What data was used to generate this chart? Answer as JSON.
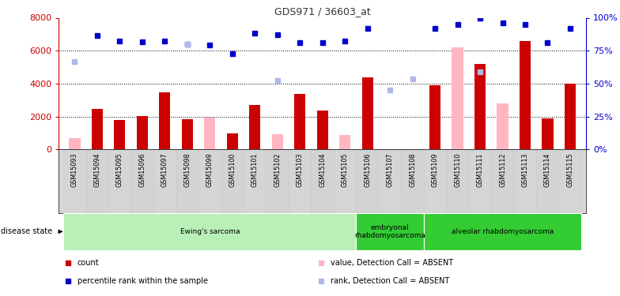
{
  "title": "GDS971 / 36603_at",
  "samples": [
    "GSM15093",
    "GSM15094",
    "GSM15095",
    "GSM15096",
    "GSM15097",
    "GSM15098",
    "GSM15099",
    "GSM15100",
    "GSM15101",
    "GSM15102",
    "GSM15103",
    "GSM15104",
    "GSM15105",
    "GSM15106",
    "GSM15107",
    "GSM15108",
    "GSM15109",
    "GSM15110",
    "GSM15111",
    "GSM15112",
    "GSM15113",
    "GSM15114",
    "GSM15115"
  ],
  "count_red": [
    null,
    2450,
    1800,
    2050,
    3450,
    1850,
    null,
    1000,
    2700,
    null,
    3350,
    2350,
    null,
    4400,
    null,
    null,
    3900,
    null,
    5200,
    null,
    6600,
    1900,
    4000
  ],
  "count_pink": [
    700,
    null,
    null,
    null,
    null,
    null,
    1950,
    null,
    null,
    950,
    null,
    null,
    900,
    null,
    null,
    null,
    null,
    6200,
    null,
    2800,
    null,
    null,
    null
  ],
  "rank_blue": [
    null,
    6900,
    6600,
    6550,
    6600,
    6400,
    6350,
    5800,
    7050,
    6950,
    6500,
    6500,
    6600,
    7350,
    null,
    null,
    7350,
    7600,
    8000,
    7700,
    7600,
    6500,
    7350
  ],
  "rank_lightblue": [
    5350,
    null,
    null,
    null,
    null,
    6400,
    null,
    null,
    null,
    4200,
    null,
    null,
    null,
    null,
    3600,
    4300,
    null,
    null,
    4700,
    null,
    null,
    null,
    null
  ],
  "disease_groups": [
    {
      "label": "Ewing's sarcoma",
      "start": 0,
      "end": 13,
      "color": "#b8f0b8"
    },
    {
      "label": "embryonal\nrhabdomyosarcoma",
      "start": 13,
      "end": 16,
      "color": "#33cc33"
    },
    {
      "label": "alveolar rhabdomyosarcoma",
      "start": 16,
      "end": 23,
      "color": "#33cc33"
    }
  ],
  "ylim_left": [
    0,
    8000
  ],
  "yticks_left": [
    0,
    2000,
    4000,
    6000,
    8000
  ],
  "yticks_right": [
    0,
    25,
    50,
    75,
    100
  ],
  "grid_values": [
    2000,
    4000,
    6000
  ],
  "bar_color_red": "#cc0000",
  "bar_color_pink": "#ffb6c1",
  "dot_color_blue": "#0000cc",
  "dot_color_lightblue": "#b0b8e8",
  "left_axis_color": "#cc0000",
  "right_axis_color": "#0000cc",
  "legend_labels": [
    "count",
    "percentile rank within the sample",
    "value, Detection Call = ABSENT",
    "rank, Detection Call = ABSENT"
  ],
  "legend_colors": [
    "#cc0000",
    "#0000cc",
    "#ffb6c1",
    "#b0b8e8"
  ],
  "xtick_bg": "#d8d8d8",
  "title_color": "#333333"
}
